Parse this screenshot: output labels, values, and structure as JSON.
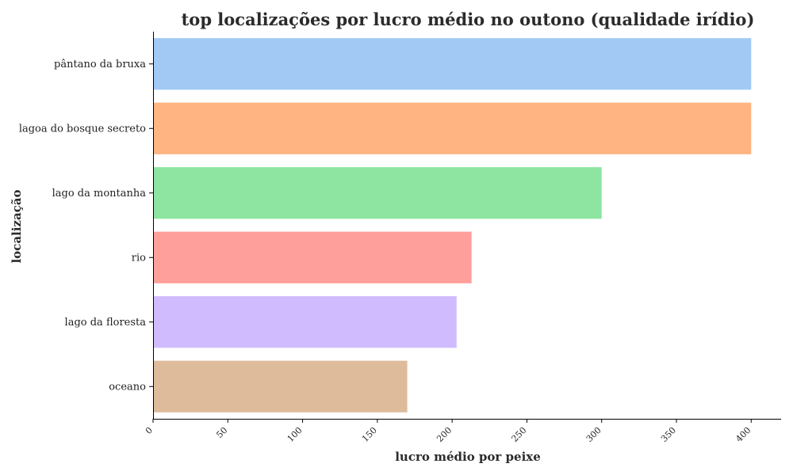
{
  "chart_data": {
    "type": "bar",
    "orientation": "horizontal",
    "title": "top localizações por lucro médio no outono (qualidade irídio)",
    "xlabel": "lucro médio por peixe",
    "ylabel": "localização",
    "xlim": [
      0,
      420
    ],
    "xticks": [
      "0",
      "50",
      "100",
      "150",
      "200",
      "250",
      "300",
      "350",
      "400"
    ],
    "categories": [
      "pântano da bruxa",
      "lagoa do bosque secreto",
      "lago da montanha",
      "rio",
      "lago da floresta",
      "oceano"
    ],
    "values": [
      400,
      400,
      300,
      213,
      203,
      170
    ],
    "colors": [
      "#a1c9f4",
      "#ffb482",
      "#8de5a1",
      "#ff9f9b",
      "#d0bbff",
      "#debb9b"
    ],
    "grid": false,
    "legend": "none"
  }
}
